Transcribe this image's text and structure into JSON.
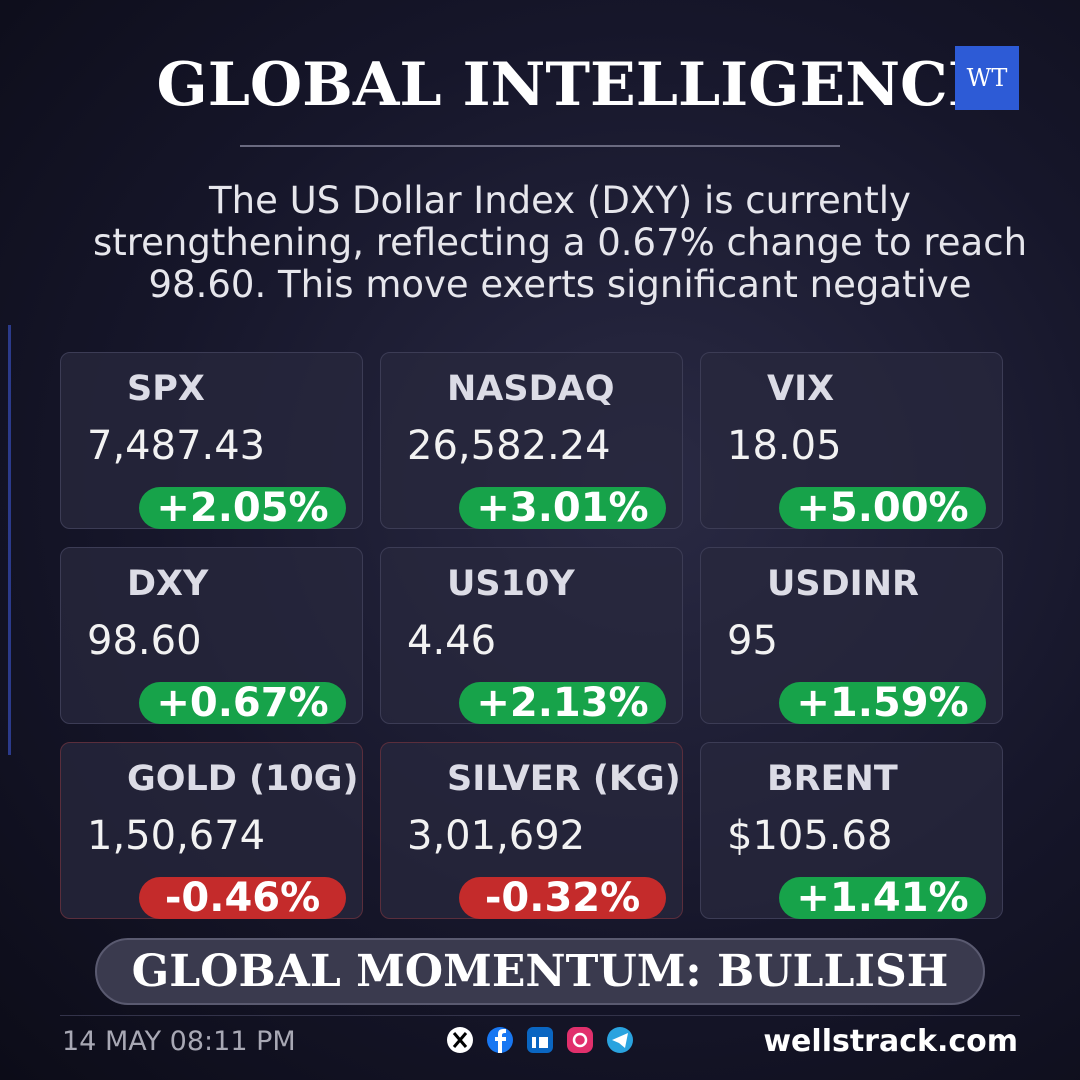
{
  "header": {
    "title": "GLOBAL INTELLIGENCE",
    "logo": "WT"
  },
  "summary": "The US Dollar Index (DXY) is currently strengthening, reflecting a 0.67% change to reach 98.60. This move exerts significant negative",
  "cards": [
    {
      "name": "SPX",
      "value": "7,487.43",
      "change": "+2.05%"
    },
    {
      "name": "NASDAQ",
      "value": "26,582.24",
      "change": "+3.01%"
    },
    {
      "name": "VIX",
      "value": "18.05",
      "change": "+5.00%"
    },
    {
      "name": "DXY",
      "value": "98.60",
      "change": "+0.67%"
    },
    {
      "name": "US10Y",
      "value": "4.46",
      "change": "+2.13%"
    },
    {
      "name": "USDINR",
      "value": "95",
      "change": "+1.59%"
    },
    {
      "name": "GOLD (10G)",
      "value": "1,50,674",
      "change": "-0.46%"
    },
    {
      "name": "SILVER (KG)",
      "value": "3,01,692",
      "change": "-0.32%"
    },
    {
      "name": "BRENT",
      "value": "$105.68",
      "change": "+1.41%"
    }
  ],
  "banner": "GLOBAL MOMENTUM: BULLISH",
  "footer": {
    "timestamp": "14 MAY 08:11 PM",
    "site": "wellstrack.com"
  }
}
